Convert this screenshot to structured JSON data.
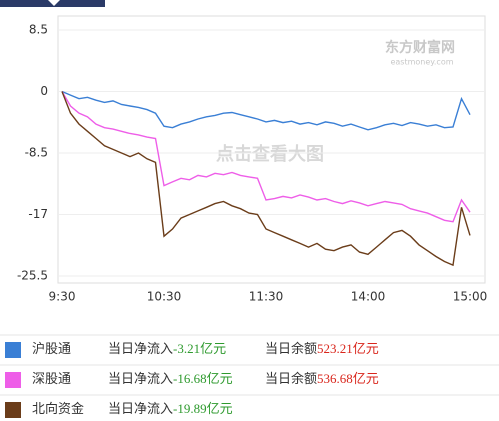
{
  "chart_data": {
    "type": "line",
    "annotations": [
      "东方财富网",
      "eastmoney.com",
      "点击查看大图"
    ],
    "x": [
      "9:30",
      null,
      null,
      null,
      null,
      null,
      null,
      null,
      null,
      null,
      null,
      null,
      "10:30",
      null,
      null,
      null,
      null,
      null,
      null,
      null,
      null,
      null,
      null,
      null,
      "11:30",
      null,
      null,
      null,
      null,
      null,
      null,
      null,
      null,
      null,
      null,
      null,
      "14:00",
      null,
      null,
      null,
      null,
      null,
      null,
      null,
      null,
      null,
      null,
      null,
      "15:00"
    ],
    "ylim": [
      -25.5,
      8.5
    ],
    "yticks": [
      8.5,
      0,
      -8.5,
      -17,
      -25.5
    ],
    "grid": true,
    "series": [
      {
        "name": "沪股通",
        "color": "#3a7fd5",
        "values": [
          0,
          -0.5,
          -1,
          -0.8,
          -1.2,
          -1.5,
          -1.3,
          -1.8,
          -2,
          -2.2,
          -2.5,
          -3,
          -4.8,
          -5,
          -4.5,
          -4.2,
          -3.8,
          -3.5,
          -3.3,
          -3,
          -2.9,
          -3.2,
          -3.5,
          -3.8,
          -4.2,
          -4,
          -4.3,
          -4.1,
          -4.5,
          -4.3,
          -4.6,
          -4.2,
          -4.4,
          -4.8,
          -4.5,
          -4.9,
          -5.3,
          -5,
          -4.6,
          -4.4,
          -4.7,
          -4.3,
          -4.5,
          -4.8,
          -4.6,
          -5,
          -4.9,
          -1,
          -3.21
        ]
      },
      {
        "name": "深股通",
        "color": "#ee5ee8",
        "values": [
          0,
          -2,
          -3,
          -3.5,
          -4.5,
          -5,
          -5.2,
          -5.5,
          -5.8,
          -6,
          -6.3,
          -6.5,
          -13,
          -12.5,
          -12,
          -12.2,
          -11.6,
          -11.8,
          -11.3,
          -11.5,
          -11.2,
          -11.6,
          -11.8,
          -12,
          -15,
          -14.8,
          -14.5,
          -14.7,
          -14.3,
          -14.6,
          -15,
          -14.8,
          -15.2,
          -15.5,
          -15.1,
          -15.4,
          -15.8,
          -15.5,
          -15.2,
          -15.4,
          -15.6,
          -16.2,
          -16.5,
          -16.8,
          -17.3,
          -17.8,
          -18,
          -15,
          -16.68
        ]
      },
      {
        "name": "北向资金",
        "color": "#6b3d1a",
        "values": [
          0,
          -3,
          -4.5,
          -5.5,
          -6.5,
          -7.5,
          -8,
          -8.5,
          -9,
          -8.5,
          -9.3,
          -9.8,
          -20,
          -19,
          -17.5,
          -17,
          -16.5,
          -16,
          -15.5,
          -15.2,
          -15.8,
          -16.2,
          -16.8,
          -17,
          -19,
          -19.5,
          -20,
          -20.5,
          -21,
          -21.5,
          -21,
          -21.8,
          -22,
          -21.5,
          -21.2,
          -22.2,
          -22.5,
          -21.5,
          -20.5,
          -19.5,
          -19.2,
          -20,
          -21.2,
          -22,
          -22.8,
          -23.5,
          -24,
          -16,
          -19.89
        ]
      }
    ]
  },
  "summary": {
    "rows": [
      {
        "net_label": "当日净流入",
        "net": "-3.21亿元",
        "balance_label": "当日余额",
        "balance": "523.21亿元"
      },
      {
        "net_label": "当日净流入",
        "net": "-16.68亿元",
        "balance_label": "当日余额",
        "balance": "536.68亿元"
      },
      {
        "net_label": "当日净流入",
        "net": "-19.89亿元"
      }
    ]
  }
}
